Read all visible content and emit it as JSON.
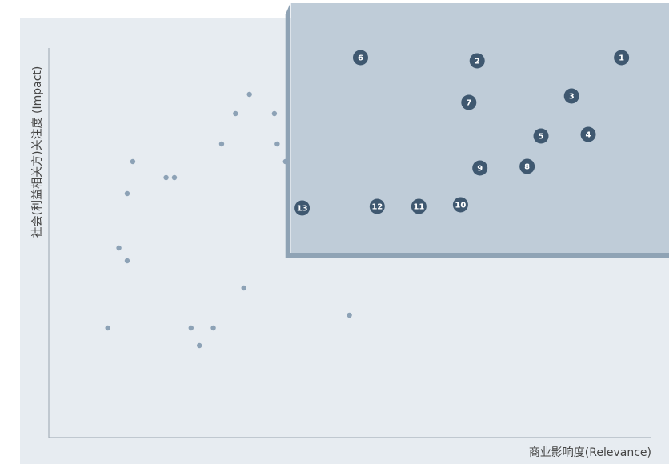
{
  "chart_data": {
    "type": "scatter",
    "title": "",
    "xlabel": "商业影响度(Relevance)",
    "ylabel": "社会(利益相关方)关注度 (Impact)",
    "xlim": [
      0,
      100
    ],
    "ylim": [
      0,
      100
    ],
    "grid": false,
    "legend": "none",
    "highlight_region": {
      "x": [
        38,
        100
      ],
      "y": [
        38.5,
        100
      ]
    },
    "numbered_points": [
      {
        "label": "1",
        "x": 97.5,
        "y": 100
      },
      {
        "label": "2",
        "x": 71.5,
        "y": 99
      },
      {
        "label": "3",
        "x": 88.5,
        "y": 88
      },
      {
        "label": "4",
        "x": 91.5,
        "y": 76
      },
      {
        "label": "5",
        "x": 83,
        "y": 75.5
      },
      {
        "label": "6",
        "x": 50.5,
        "y": 100
      },
      {
        "label": "7",
        "x": 70,
        "y": 86
      },
      {
        "label": "8",
        "x": 80.5,
        "y": 66
      },
      {
        "label": "9",
        "x": 72,
        "y": 65.5
      },
      {
        "label": "10",
        "x": 68.5,
        "y": 54
      },
      {
        "label": "11",
        "x": 61,
        "y": 53.5
      },
      {
        "label": "12",
        "x": 53.5,
        "y": 53.5
      },
      {
        "label": "13",
        "x": 40,
        "y": 53
      }
    ],
    "background_points": [
      {
        "x": 30.5,
        "y": 88.5
      },
      {
        "x": 28,
        "y": 82.5
      },
      {
        "x": 35,
        "y": 82.5
      },
      {
        "x": 25.5,
        "y": 73
      },
      {
        "x": 35.5,
        "y": 73
      },
      {
        "x": 37,
        "y": 67.5
      },
      {
        "x": 9.5,
        "y": 67.5
      },
      {
        "x": 15.5,
        "y": 62.5
      },
      {
        "x": 17,
        "y": 62.5
      },
      {
        "x": 8.5,
        "y": 57.5
      },
      {
        "x": 7,
        "y": 40.5
      },
      {
        "x": 8.5,
        "y": 36.5
      },
      {
        "x": 29.5,
        "y": 28
      },
      {
        "x": 48.5,
        "y": 19.5
      },
      {
        "x": 5,
        "y": 15.5
      },
      {
        "x": 20,
        "y": 15.5
      },
      {
        "x": 24,
        "y": 15.5
      },
      {
        "x": 21.5,
        "y": 10
      }
    ],
    "colors": {
      "plot_background": "#e7ecf1",
      "highlight_fill": "#bfccd8",
      "highlight_edge": "#8fa3b5",
      "marker": "#3f5870",
      "small_point": "#8da2b6",
      "axis": "#9aa5af"
    }
  }
}
